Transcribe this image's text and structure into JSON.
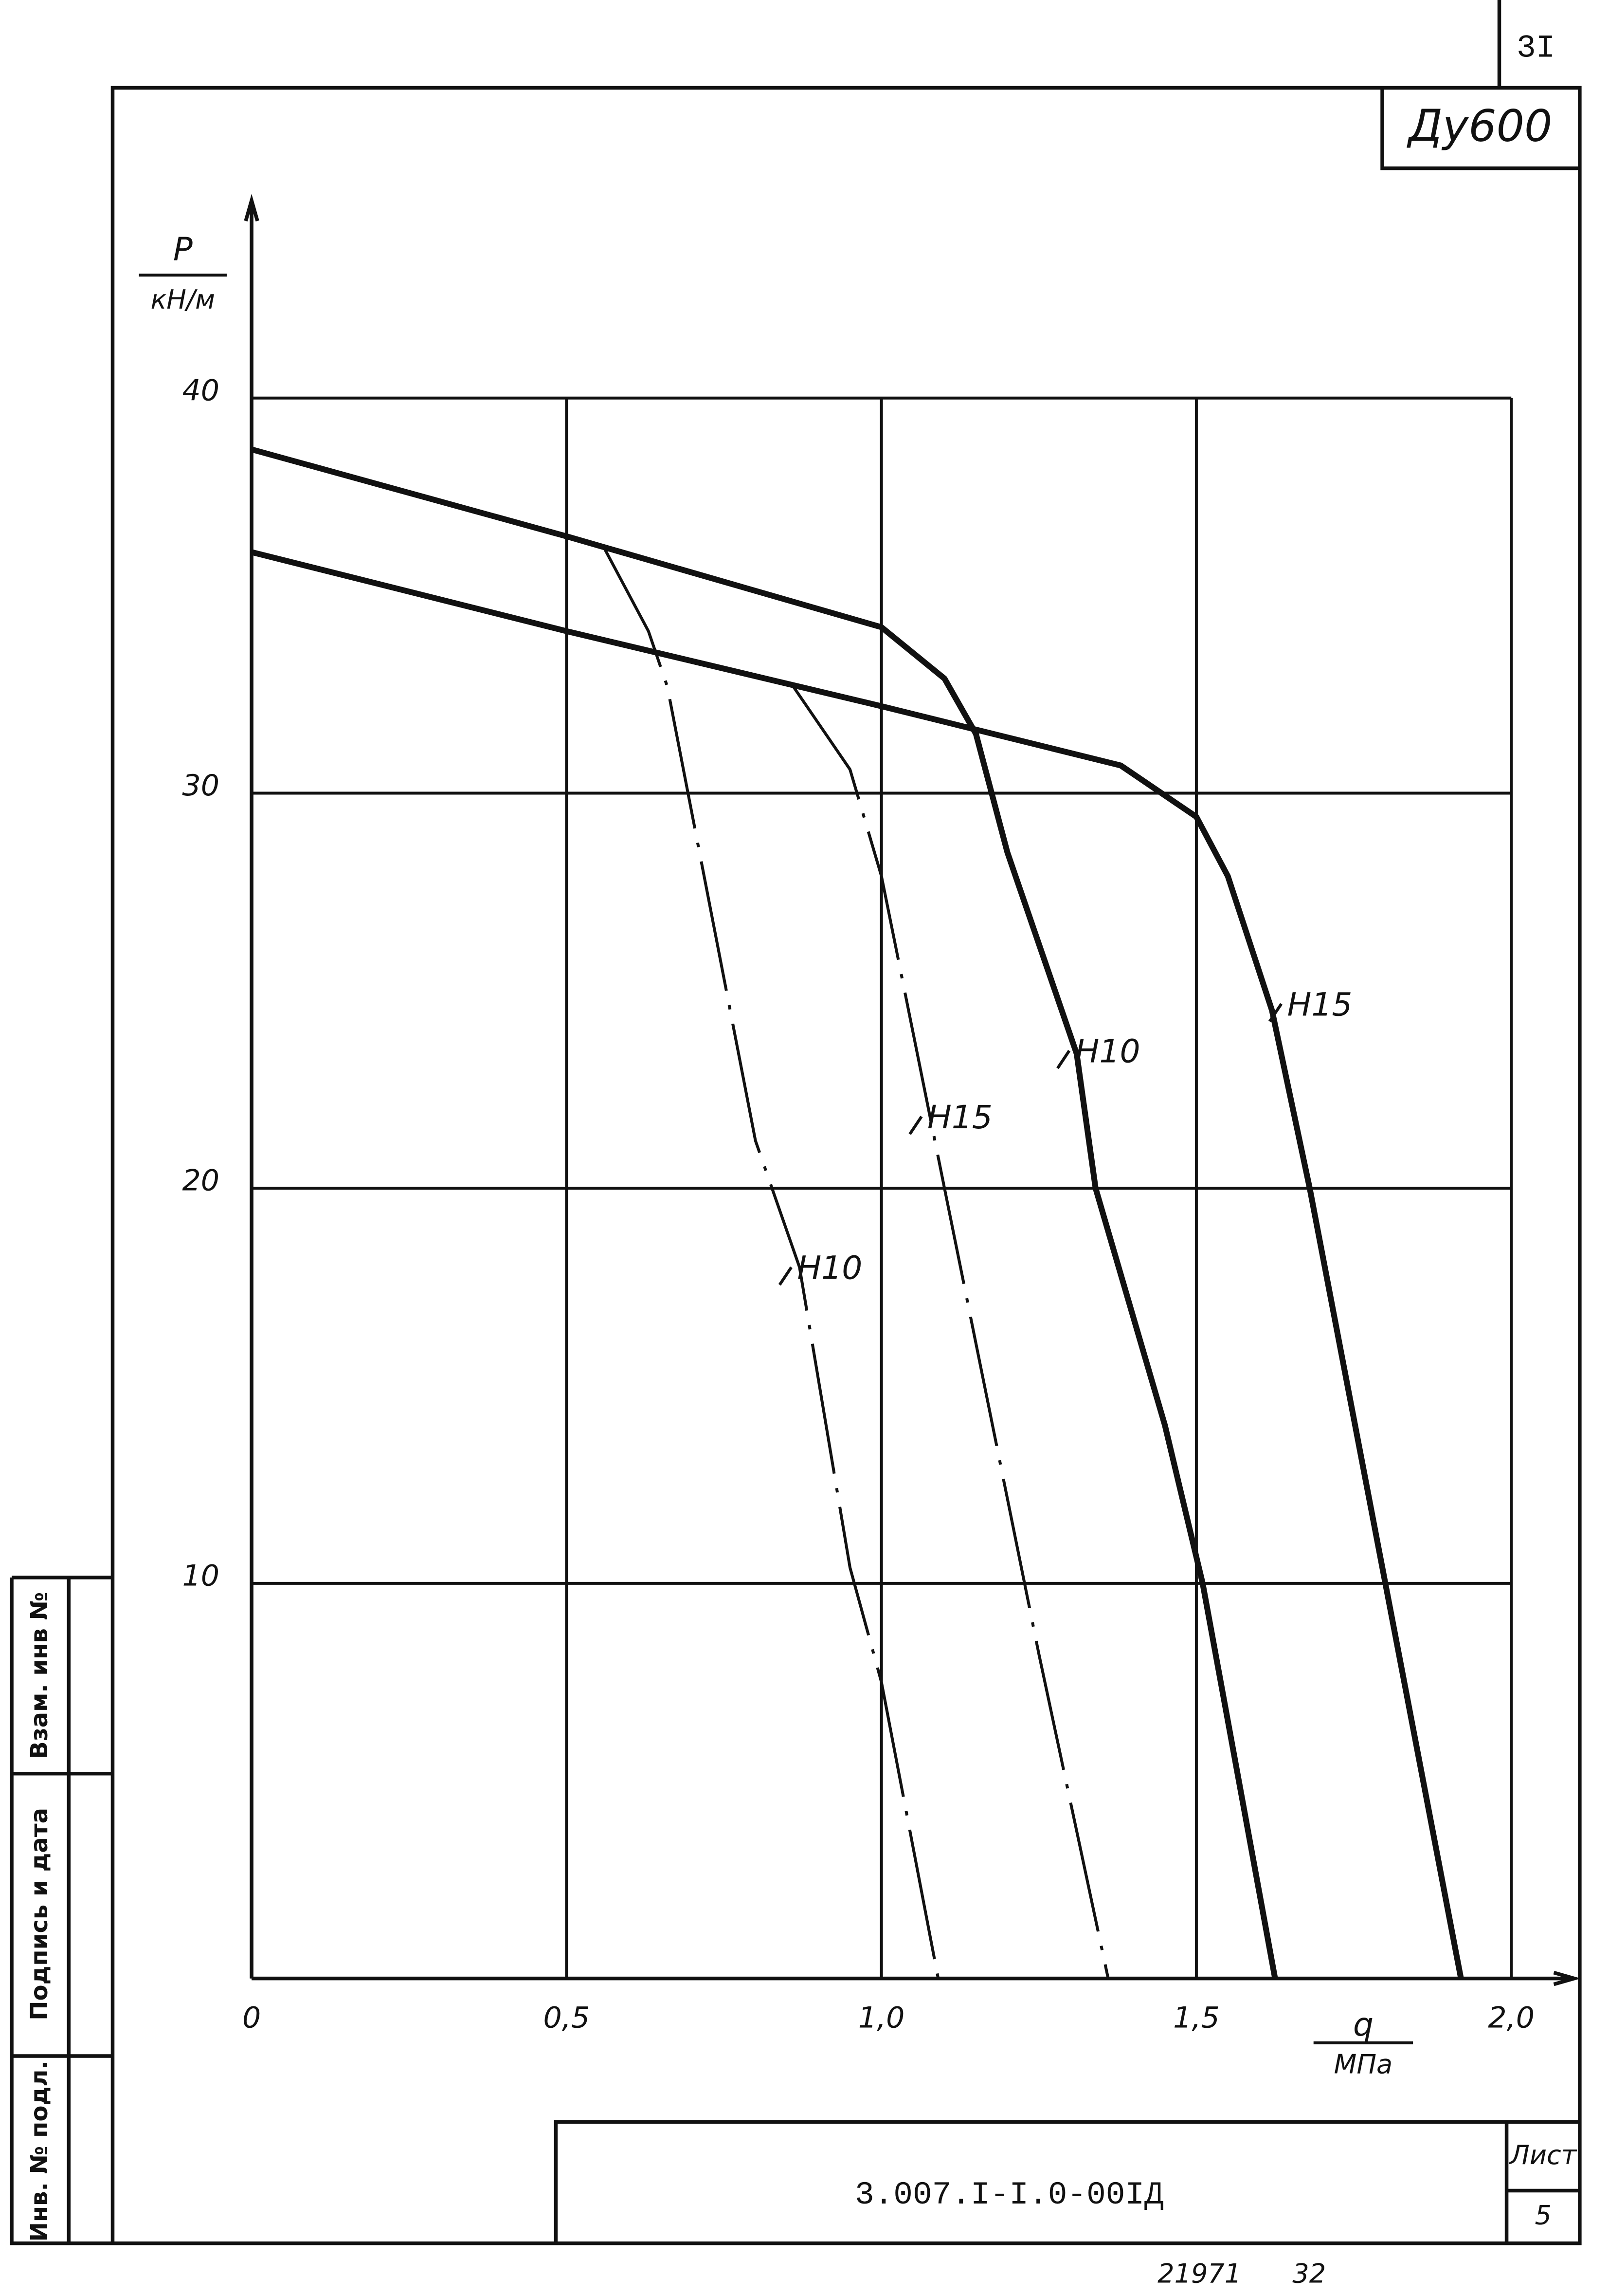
{
  "sheet": {
    "number": "3I",
    "size_label": "Ду600",
    "doc_code": "3.007.I-I.0-00IД",
    "list_label": "Лист",
    "list_number": "5",
    "footer_left": "21971",
    "footer_right": "32",
    "stamp": [
      "Инв. № подл.",
      "Подпись и дата",
      "Взам. инв №"
    ]
  },
  "chart_data": {
    "type": "line",
    "y_label": "P",
    "y_unit": "кН/м",
    "x_label": "q",
    "x_unit": "МПа",
    "xlim": [
      0,
      2.1
    ],
    "ylim": [
      0,
      45
    ],
    "xticks": [
      0,
      {
        "value": 0.5,
        "label": "0,5"
      },
      {
        "value": 1.0,
        "label": "1,0"
      },
      {
        "value": 1.5,
        "label": "1,5"
      },
      {
        "value": 2.0,
        "label": "2,0"
      }
    ],
    "yticks": [
      10,
      20,
      30,
      40
    ],
    "grid": true,
    "series": [
      {
        "name": "Н10",
        "color": "#111111",
        "line_style": "solid",
        "x": [
          0,
          0.5,
          1.0,
          1.1,
          1.15,
          1.2,
          1.31,
          1.34,
          1.45,
          1.51,
          1.625
        ],
        "values": [
          38.7,
          36.5,
          34.2,
          32.9,
          31.5,
          28.5,
          23.4,
          20,
          14,
          10,
          0
        ]
      },
      {
        "name": "Н15",
        "color": "#111111",
        "line_style": "solid",
        "x": [
          0,
          0.5,
          1.0,
          1.38,
          1.5,
          1.55,
          1.62,
          1.68,
          1.8,
          1.92
        ],
        "values": [
          36.1,
          34.1,
          32.2,
          30.7,
          29.4,
          27.9,
          24.5,
          20,
          10,
          0
        ]
      },
      {
        "name": "Н10",
        "color": "#111111",
        "line_style": "dash-dot",
        "x": [
          0.56,
          0.63,
          0.66,
          0.8,
          0.87,
          0.95,
          1.0,
          1.09
        ],
        "values": [
          36.2,
          34.1,
          32.7,
          21.2,
          18,
          10.4,
          7.5,
          0
        ]
      },
      {
        "name": "Н15",
        "color": "#111111",
        "line_style": "dash-dot",
        "x": [
          0.86,
          0.95,
          1.0,
          1.1,
          1.25,
          1.36
        ],
        "values": [
          32.7,
          30.6,
          27.9,
          20,
          8.2,
          0
        ]
      }
    ]
  }
}
